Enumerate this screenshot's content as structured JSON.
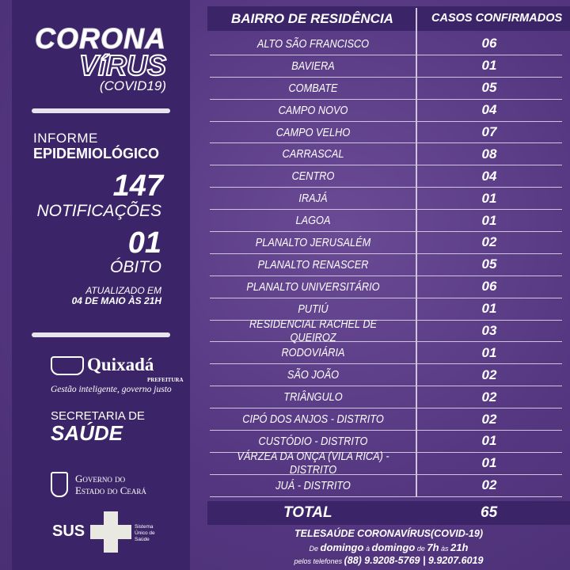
{
  "sidebar": {
    "title_line1": "CORONA",
    "title_line2": "VíRUS",
    "title_line3": "(COVID19)",
    "report_line1": "INFORME",
    "report_line2": "EPIDEMIOLÓGICO",
    "notifications_count": "147",
    "notifications_label": "NOTIFICAÇÕES",
    "deaths_count": "01",
    "deaths_label": "ÓBITO",
    "updated_line1": "ATUALIZADO EM",
    "updated_line2": "04 DE MAIO ÀS 21H",
    "prefeitura_name": "Quixadá",
    "prefeitura_label": "PREFEITURA",
    "prefeitura_slogan": "Gestão inteligente, governo justo",
    "secretaria_line1": "SECRETARIA DE",
    "secretaria_line2": "SAÚDE",
    "governo_line1": "Governo do",
    "governo_line2": "Estado do Ceará",
    "sus_label": "SUS",
    "sus_desc": [
      "Sistema",
      "Único de",
      "Saúde"
    ]
  },
  "table": {
    "headers": [
      "BAIRRO DE RESIDÊNCIA",
      "CASOS CONFIRMADOS"
    ],
    "rows": [
      [
        "ALTO SÃO FRANCISCO",
        "06"
      ],
      [
        "BAVIERA",
        "01"
      ],
      [
        "COMBATE",
        "05"
      ],
      [
        "CAMPO NOVO",
        "04"
      ],
      [
        "CAMPO VELHO",
        "07"
      ],
      [
        "CARRASCAL",
        "08"
      ],
      [
        "CENTRO",
        "04"
      ],
      [
        "IRAJÁ",
        "01"
      ],
      [
        "LAGOA",
        "01"
      ],
      [
        "PLANALTO JERUSALÉM",
        "02"
      ],
      [
        "PLANALTO RENASCER",
        "05"
      ],
      [
        "PLANALTO UNIVERSITÁRIO",
        "06"
      ],
      [
        "PUTIÚ",
        "01"
      ],
      [
        "RESIDENCIAL RACHEL DE QUEIROZ",
        "03"
      ],
      [
        "RODOVIÁRIA",
        "01"
      ],
      [
        "SÃO JOÃO",
        "02"
      ],
      [
        "TRIÂNGULO",
        "02"
      ],
      [
        "CIPÓ DOS ANJOS - DISTRITO",
        "02"
      ],
      [
        "CUSTÓDIO - DISTRITO",
        "01"
      ],
      [
        "VÁRZEA DA ONÇA (VILA RICA) - DISTRITO",
        "01"
      ],
      [
        "JUÁ - DISTRITO",
        "02"
      ]
    ],
    "total_label": "TOTAL",
    "total_value": "65"
  },
  "footer": {
    "title": "TELESAÚDE CORONAVÍRUS(COVID-19)",
    "schedule_parts": [
      "De ",
      "domingo",
      " à ",
      "domingo",
      " de ",
      "7h",
      " às ",
      "21h"
    ],
    "phones_prefix": "pelos telefones ",
    "phones": "(88) 9.9208-5769 | 9.9207.6019"
  },
  "colors": {
    "background": "#573a82",
    "panel": "#3b2568",
    "text": "#ffffff"
  }
}
